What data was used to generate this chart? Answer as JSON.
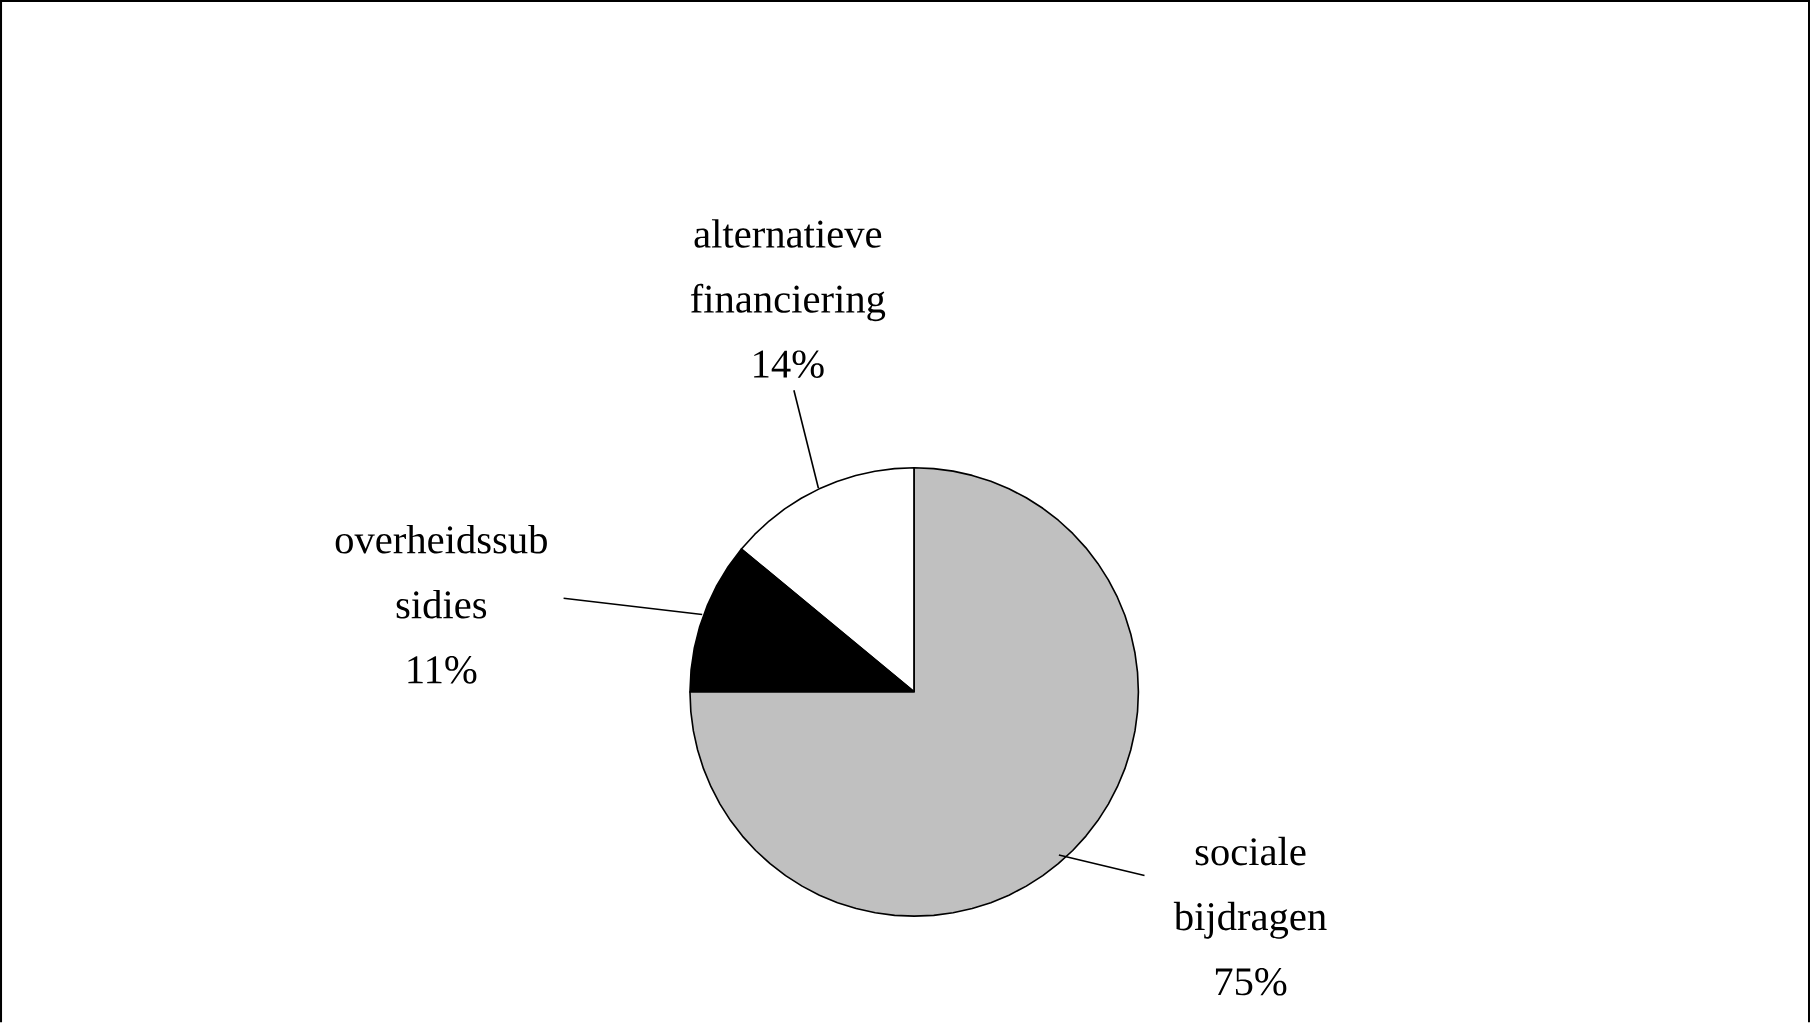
{
  "chart_data": {
    "type": "pie",
    "categories": [
      "sociale bijdragen",
      "overheidssub sidies",
      "alternatieve financiering"
    ],
    "values": [
      75,
      11,
      14
    ],
    "value_labels": [
      "75%",
      "11%",
      "14%"
    ],
    "colors": [
      "#c0c0c0",
      "#000000",
      "#ffffff"
    ]
  }
}
